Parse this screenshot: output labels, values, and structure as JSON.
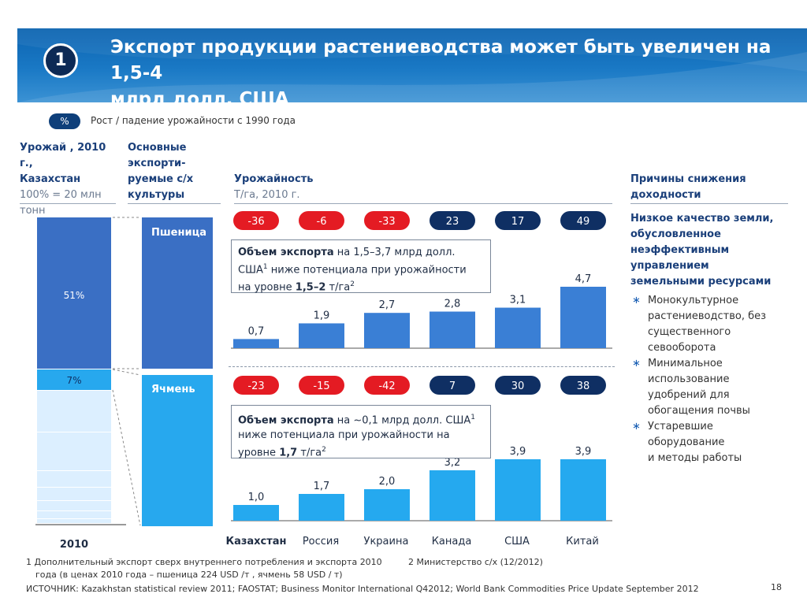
{
  "header": {
    "badge_number": "1",
    "title_line1": "Экспорт продукции растениеводства может быть увеличен на 1,5-4",
    "title_line2": "млрд долл. США"
  },
  "legend": {
    "chip": "%",
    "text": "Рост / падение урожайности с 1990 года"
  },
  "columns": {
    "harvest_line1": "Урожай , 2010 г.,",
    "harvest_line2": "Казахстан",
    "harvest_line3": "100% = 20 млн",
    "harvest_line4": "тонн",
    "crops_line1": "Основные",
    "crops_line2": "экспорти-",
    "crops_line3": "руемые с/х",
    "crops_line4": "культуры",
    "yield_line1": "Урожайность",
    "yield_line2": "Т/га, 2010 г.",
    "reasons_line1": "Причины снижения",
    "reasons_line2": "доходности"
  },
  "stack": {
    "year": "2010",
    "wheat_pct": "51%",
    "barley_pct": "7%",
    "wheat_share": 0.51,
    "barley_share": 0.07
  },
  "crops": {
    "wheat": "Пшеница",
    "barley": "Ячмень"
  },
  "callouts": {
    "wheat_bold": "Объем экспорта",
    "wheat_text1": " на 1,5–3,7 млрд долл.",
    "wheat_text2": "США",
    "wheat_sup1": "1",
    "wheat_text3": " ниже потенциала при урожайности",
    "wheat_text4": "на уровне ",
    "wheat_bold2": "1,5–2",
    "wheat_text5": " т/га",
    "wheat_sup2": "2",
    "barley_bold": "Объем экспорта",
    "barley_text1": " на ~0,1 млрд долл. США",
    "barley_sup1": "1",
    "barley_text2": "ниже потенциала при урожайности на",
    "barley_text3": "уровне ",
    "barley_bold2": "1,7",
    "barley_text4": " т/га",
    "barley_sup2": "2"
  },
  "countries": [
    "Казахстан",
    "Россия",
    "Украина",
    "Канада",
    "США",
    "Китай"
  ],
  "colors": {
    "wheat_bar": "#3a7fd5",
    "barley_bar": "#25a9ef",
    "negative": "#e41b23",
    "positive": "#0f2f63",
    "header": "#1a79c5"
  },
  "reasons": {
    "lead_line1": "Низкое качество земли,",
    "lead_line2": "обусловленное",
    "lead_line3": "неэффективным",
    "lead_line4": "управлением",
    "lead_line5": "земельными ресурсами",
    "b1_line1": "Монокультурное",
    "b1_line2": "растениеводство, без",
    "b1_line3": "существенного",
    "b1_line4": "севооборота",
    "b2_line1": "Минимальное",
    "b2_line2": "использование",
    "b2_line3": "удобрений для",
    "b2_line4": "обогащения почвы",
    "b3_line1": "Устаревшие",
    "b3_line2": "оборудование",
    "b3_line3": "и методы работы",
    "bullet": "∗"
  },
  "footnotes": {
    "f1": "1 Дополнительный экспорт сверх внутреннего потребления и экспорта 2010",
    "f2": "2 Министерство с/х (12/2012)",
    "f1b": "года (в ценах 2010 года – пшеница 224 USD /т , ячмень 58 USD / т)",
    "source": "ИСТОЧНИК: Kazakhstan statistical review 2011; FAOSTAT; Business Monitor International Q42012; World Bank Commodities Price Update September 2012",
    "page": "18"
  },
  "chart_data": [
    {
      "type": "bar",
      "title": "Пшеница",
      "ylabel": "Т/га, 2010 г.",
      "categories": [
        "Казахстан",
        "Россия",
        "Украина",
        "Канада",
        "США",
        "Китай"
      ],
      "values": [
        0.7,
        1.9,
        2.7,
        2.8,
        3.1,
        4.7
      ],
      "value_labels": [
        "0,7",
        "1,9",
        "2,7",
        "2,8",
        "3,1",
        "4,7"
      ],
      "change_since_1990_pct": [
        -36,
        -6,
        -33,
        23,
        17,
        49
      ],
      "change_labels": [
        "-36",
        "-6",
        "-33",
        "23",
        "17",
        "49"
      ],
      "ylim": [
        0,
        4.7
      ]
    },
    {
      "type": "bar",
      "title": "Ячмень",
      "ylabel": "Т/га, 2010 г.",
      "categories": [
        "Казахстан",
        "Россия",
        "Украина",
        "Канада",
        "США",
        "Китай"
      ],
      "values": [
        1.0,
        1.7,
        2.0,
        3.2,
        3.9,
        3.9
      ],
      "value_labels": [
        "1,0",
        "1,7",
        "2,0",
        "3,2",
        "3,9",
        "3,9"
      ],
      "change_since_1990_pct": [
        -23,
        -15,
        -42,
        7,
        30,
        38
      ],
      "change_labels": [
        "-23",
        "-15",
        "-42",
        "7",
        "30",
        "38"
      ],
      "ylim": [
        0,
        3.9
      ]
    }
  ]
}
